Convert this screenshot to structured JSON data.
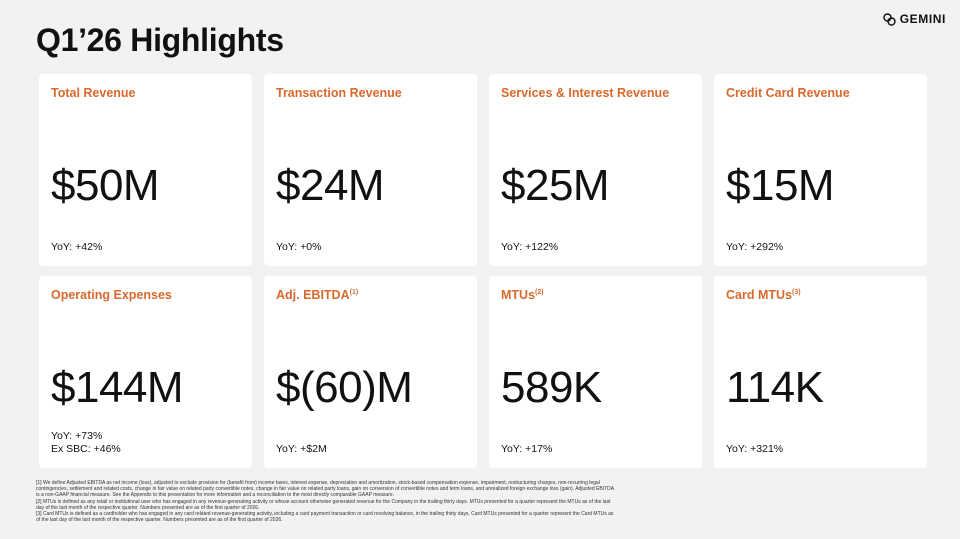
{
  "header": {
    "title": "Q1’26 Highlights",
    "logo_text": "GEMINI"
  },
  "cards": [
    {
      "title": "Total Revenue",
      "superscript": "",
      "value": "$50M",
      "foot": [
        "YoY: +42%"
      ]
    },
    {
      "title": "Transaction Revenue",
      "superscript": "",
      "value": "$24M",
      "foot": [
        "YoY:  +0%"
      ]
    },
    {
      "title": "Services & Interest Revenue",
      "superscript": "",
      "value": "$25M",
      "foot": [
        "YoY:  +122%"
      ]
    },
    {
      "title": "Credit Card Revenue",
      "superscript": "",
      "value": "$15M",
      "foot": [
        "YoY:  +292%"
      ]
    },
    {
      "title": "Operating Expenses",
      "superscript": "",
      "value": "$144M",
      "foot": [
        "YoY:  +73%",
        "Ex SBC: +46%"
      ]
    },
    {
      "title": "Adj. EBITDA",
      "superscript": "(1)",
      "value": "$(60)M",
      "foot": [
        "YoY:  +$2M"
      ]
    },
    {
      "title": "MTUs",
      "superscript": "(2)",
      "value": "589K",
      "foot": [
        "YoY:  +17%"
      ]
    },
    {
      "title": "Card MTUs",
      "superscript": "(3)",
      "value": "114K",
      "foot": [
        "YoY:  +321%"
      ]
    }
  ],
  "footnotes": [
    "[1] We define Adjusted EBITDA as net income (loss), adjusted to exclude provision for (benefit from) income taxes, interest expense, depreciation and amortization, stock-based compensation expense, impairment, restructuring charges, non-recurring legal contingencies, settlement and related costs, change in fair value on related party convertible notes, change in fair value on related party loans, gain on conversion of convertible notes and term loans, and unrealized foreign exchange loss (gain). Adjusted EBITDA is a non-GAAP financial measure. See the Appendix to this presentation for more information and a reconciliation to the most directly comparable GAAP measure.",
    "[2] MTUs is defined as any retail or institutional user who has engaged in any revenue-generating activity or whose account otherwise generated revenue for the Company in the trailing thirty days. MTUs presented for a quarter represent the MTUs as of the last day of the last month of the respective quarter. Numbers presented are as of the first quarter of 2026.",
    "[3] Card MTUs is defined as a cardholder who has engaged in any card related revenue-generating activity, including a card payment transaction or card revolving balance, in the trailing thirty days. Card MTUs presented for a quarter represent the Card MTUs as of the last day of the last month of the respective quarter. Numbers presented are as of the first quarter of 2026."
  ],
  "colors": {
    "accent": "#d9692c",
    "background": "#f2f2f2",
    "card": "#ffffff",
    "text": "#111111"
  }
}
